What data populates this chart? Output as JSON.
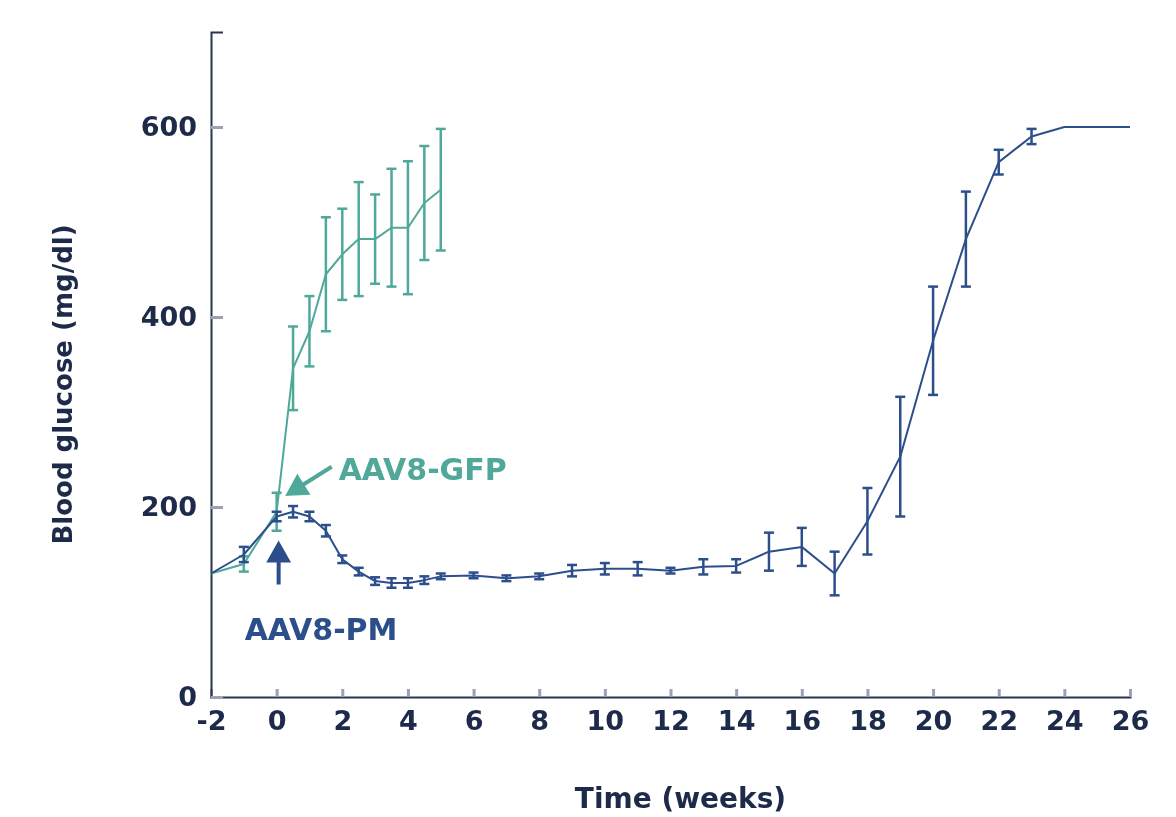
{
  "chart_data": {
    "type": "line",
    "xlabel": "Time (weeks)",
    "ylabel": "Blood glucose (mg/dl)",
    "xlim": [
      -2,
      26
    ],
    "xticks": [
      -2,
      0,
      2,
      4,
      6,
      8,
      10,
      12,
      14,
      16,
      18,
      20,
      22,
      24,
      26
    ],
    "ylim": [
      0,
      700
    ],
    "yticks": [
      0,
      200,
      400,
      600
    ],
    "grid": false,
    "legend": "left",
    "marker": "none",
    "line_style": "solid",
    "series": [
      {
        "name": "AAV8-GFP",
        "color": "#4fa89a",
        "x": [
          -2,
          -1,
          0,
          0.5,
          1,
          1.5,
          2,
          2.5,
          3,
          3.5,
          4,
          4.5,
          5
        ],
        "values": [
          130,
          140,
          195,
          346,
          385,
          445,
          466,
          482,
          482,
          494,
          494,
          520,
          534
        ],
        "errors": [
          null,
          8,
          20,
          44,
          37,
          60,
          48,
          60,
          47,
          62,
          70,
          60,
          64
        ]
      },
      {
        "name": "AAV8-PM",
        "color": "#2c4f8c",
        "x": [
          -2,
          -1,
          0,
          0.5,
          1,
          1.5,
          2,
          2.5,
          3,
          3.5,
          4,
          4.5,
          5,
          6,
          7,
          8,
          9,
          10,
          11,
          12,
          13,
          14,
          15,
          16,
          17,
          18,
          19,
          20,
          21,
          22,
          23,
          24,
          26
        ],
        "values": [
          130,
          150,
          190,
          195,
          190,
          175,
          145,
          132,
          122,
          120,
          120,
          123,
          127,
          128,
          125,
          127,
          133,
          135,
          135,
          133,
          137,
          138,
          153,
          158,
          130,
          185,
          253,
          375,
          482,
          563,
          590,
          600,
          600
        ],
        "errors": [
          null,
          8,
          5,
          6,
          5,
          6,
          4,
          4,
          4,
          5,
          5,
          4,
          3,
          3,
          3,
          3,
          6,
          6,
          7,
          3,
          8,
          7,
          20,
          20,
          23,
          35,
          63,
          57,
          50,
          13,
          8,
          null,
          null
        ]
      }
    ]
  }
}
